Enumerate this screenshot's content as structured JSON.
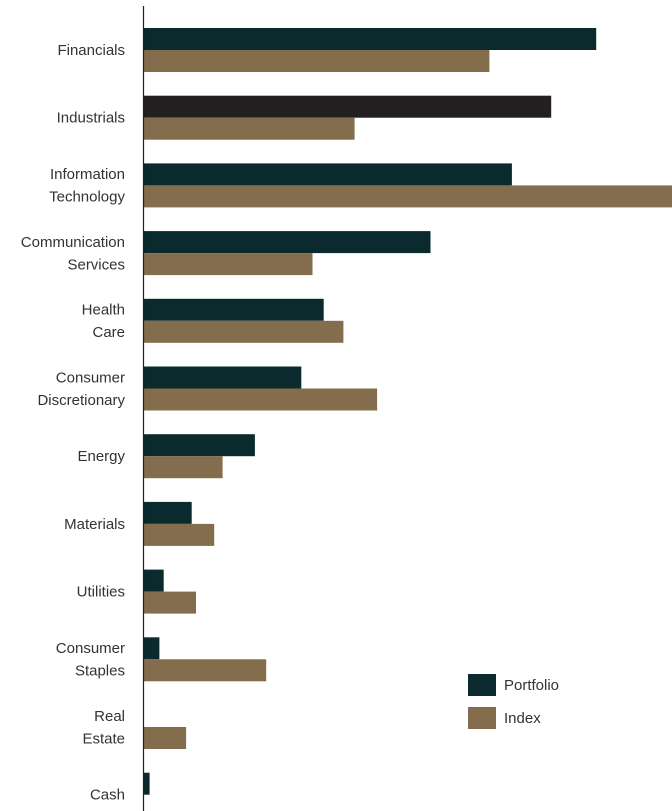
{
  "chart_data": {
    "type": "bar",
    "orientation": "horizontal",
    "categories": [
      [
        "Financials"
      ],
      [
        "Industrials"
      ],
      [
        "Information",
        "Technology"
      ],
      [
        "Communication",
        "Services"
      ],
      [
        "Health",
        "Care"
      ],
      [
        "Consumer",
        "Discretionary"
      ],
      [
        "Energy"
      ],
      [
        "Materials"
      ],
      [
        "Utilities"
      ],
      [
        "Consumer",
        "Staples"
      ],
      [
        "Real",
        "Estate"
      ],
      [
        "Cash"
      ]
    ],
    "series": [
      {
        "name": "Portfolio",
        "color": "#0b2a2e",
        "values": [
          16.1,
          14.5,
          13.1,
          10.2,
          6.4,
          5.6,
          3.95,
          1.7,
          0.7,
          0.55,
          0,
          0.2
        ]
      },
      {
        "name": "Index",
        "color": "#836d4c",
        "values": [
          12.3,
          7.5,
          18.8,
          6.0,
          7.1,
          8.3,
          2.8,
          2.5,
          1.85,
          4.35,
          1.5,
          0
        ]
      }
    ],
    "highlight": {
      "category_index": 1,
      "series_index": 0,
      "color": "#231f20"
    },
    "xlim": [
      0,
      18.8
    ],
    "legend": {
      "position": "bottom-right",
      "entries": [
        "Portfolio",
        "Index"
      ]
    },
    "grid": false,
    "title": "",
    "xlabel": "",
    "ylabel": ""
  }
}
